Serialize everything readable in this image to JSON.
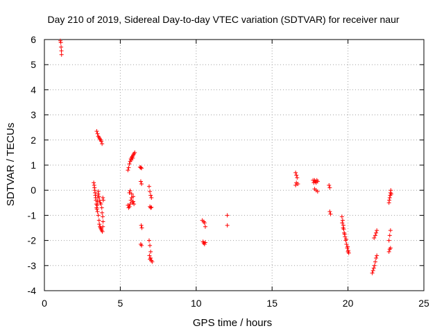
{
  "chart_data": {
    "type": "scatter",
    "title": "Day 210 of 2019, Sidereal Day-to-day VTEC variation (SDTVAR) for receiver naur",
    "xlabel": "GPS time / hours",
    "ylabel": "SDTVAR / TECUs",
    "xlim": [
      0,
      25
    ],
    "ylim": [
      -4,
      6
    ],
    "x_ticks": [
      0,
      5,
      10,
      15,
      20,
      25
    ],
    "y_ticks": [
      -4,
      -3,
      -2,
      -1,
      0,
      1,
      2,
      3,
      4,
      5,
      6
    ],
    "grid": true,
    "marker": "+",
    "colors": {
      "marker": "#ff0000",
      "grid": "#a0a0a0",
      "axes": "#000000"
    },
    "series": [
      {
        "name": "SDTVAR",
        "points": [
          [
            1.05,
            5.95
          ],
          [
            1.08,
            5.88
          ],
          [
            1.1,
            5.7
          ],
          [
            1.12,
            5.55
          ],
          [
            1.13,
            5.4
          ],
          [
            3.25,
            0.3
          ],
          [
            3.28,
            0.2
          ],
          [
            3.3,
            0.1
          ],
          [
            3.32,
            0.0
          ],
          [
            3.34,
            -0.1
          ],
          [
            3.36,
            -0.2
          ],
          [
            3.38,
            -0.3
          ],
          [
            3.4,
            -0.4
          ],
          [
            3.42,
            -0.55
          ],
          [
            3.44,
            -0.7
          ],
          [
            3.46,
            -0.75
          ],
          [
            3.48,
            -0.6
          ],
          [
            3.5,
            -0.45
          ],
          [
            3.52,
            -0.3
          ],
          [
            3.54,
            -0.15
          ],
          [
            3.56,
            -0.05
          ],
          [
            3.5,
            -0.85
          ],
          [
            3.55,
            -1.0
          ],
          [
            3.6,
            -1.2
          ],
          [
            3.62,
            -1.35
          ],
          [
            3.66,
            -1.45
          ],
          [
            3.7,
            -1.5
          ],
          [
            3.74,
            -1.55
          ],
          [
            3.78,
            -1.6
          ],
          [
            3.82,
            -1.65
          ],
          [
            3.85,
            -1.45
          ],
          [
            3.86,
            -1.25
          ],
          [
            3.84,
            -1.05
          ],
          [
            3.8,
            -0.9
          ],
          [
            3.78,
            -0.7
          ],
          [
            3.72,
            -0.55
          ],
          [
            3.68,
            -0.5
          ],
          [
            3.64,
            -0.4
          ],
          [
            3.6,
            -0.25
          ],
          [
            3.85,
            -0.3
          ],
          [
            3.88,
            -0.4
          ],
          [
            3.45,
            2.35
          ],
          [
            3.5,
            2.25
          ],
          [
            3.55,
            2.15
          ],
          [
            3.6,
            2.1
          ],
          [
            3.65,
            2.05
          ],
          [
            3.7,
            2.0
          ],
          [
            3.75,
            1.95
          ],
          [
            3.8,
            1.85
          ],
          [
            5.5,
            0.8
          ],
          [
            5.55,
            0.9
          ],
          [
            5.6,
            1.05
          ],
          [
            5.65,
            1.15
          ],
          [
            5.7,
            1.25
          ],
          [
            5.75,
            1.3
          ],
          [
            5.8,
            1.35
          ],
          [
            5.85,
            1.4
          ],
          [
            5.9,
            1.45
          ],
          [
            5.95,
            1.5
          ],
          [
            5.72,
            1.2
          ],
          [
            5.82,
            1.28
          ],
          [
            5.5,
            -0.6
          ],
          [
            5.55,
            -0.7
          ],
          [
            5.6,
            -0.65
          ],
          [
            5.65,
            -0.55
          ],
          [
            5.7,
            -0.4
          ],
          [
            5.75,
            -0.3
          ],
          [
            5.8,
            -0.5
          ],
          [
            5.85,
            -0.45
          ],
          [
            5.9,
            -0.55
          ],
          [
            5.6,
            -0.1
          ],
          [
            5.65,
            -0.02
          ],
          [
            5.75,
            -0.15
          ],
          [
            5.85,
            -0.25
          ],
          [
            6.3,
            0.92
          ],
          [
            6.35,
            0.9
          ],
          [
            6.4,
            0.88
          ],
          [
            6.35,
            0.35
          ],
          [
            6.4,
            0.25
          ],
          [
            6.38,
            -1.4
          ],
          [
            6.42,
            -1.5
          ],
          [
            6.35,
            -2.15
          ],
          [
            6.4,
            -2.2
          ],
          [
            6.9,
            0.15
          ],
          [
            6.95,
            -0.05
          ],
          [
            7.0,
            -0.2
          ],
          [
            7.05,
            -0.3
          ],
          [
            6.95,
            -0.65
          ],
          [
            7.0,
            -0.7
          ],
          [
            7.05,
            -0.68
          ],
          [
            6.9,
            -2.0
          ],
          [
            6.95,
            -2.2
          ],
          [
            7.0,
            -2.45
          ],
          [
            6.92,
            -2.6
          ],
          [
            7.0,
            -2.7
          ],
          [
            7.05,
            -2.8
          ],
          [
            7.1,
            -2.85
          ],
          [
            6.95,
            -2.75
          ],
          [
            10.4,
            -1.2
          ],
          [
            10.5,
            -1.25
          ],
          [
            10.55,
            -1.3
          ],
          [
            10.6,
            -1.45
          ],
          [
            10.45,
            -2.05
          ],
          [
            10.5,
            -2.1
          ],
          [
            10.55,
            -2.15
          ],
          [
            10.6,
            -2.08
          ],
          [
            12.05,
            -1.0
          ],
          [
            12.05,
            -1.4
          ],
          [
            16.55,
            0.7
          ],
          [
            16.6,
            0.6
          ],
          [
            16.65,
            0.5
          ],
          [
            16.6,
            0.3
          ],
          [
            16.55,
            0.2
          ],
          [
            16.7,
            0.25
          ],
          [
            17.7,
            0.4
          ],
          [
            17.75,
            0.3
          ],
          [
            17.8,
            0.4
          ],
          [
            17.85,
            0.35
          ],
          [
            17.9,
            0.3
          ],
          [
            17.95,
            0.4
          ],
          [
            18.0,
            0.35
          ],
          [
            17.8,
            0.05
          ],
          [
            17.9,
            0.0
          ],
          [
            18.0,
            -0.05
          ],
          [
            18.75,
            0.2
          ],
          [
            18.8,
            0.1
          ],
          [
            18.8,
            -0.85
          ],
          [
            18.85,
            -0.95
          ],
          [
            19.6,
            -1.05
          ],
          [
            19.65,
            -1.2
          ],
          [
            19.7,
            -1.4
          ],
          [
            19.72,
            -1.55
          ],
          [
            19.75,
            -1.7
          ],
          [
            19.8,
            -1.85
          ],
          [
            19.85,
            -2.0
          ],
          [
            19.9,
            -2.15
          ],
          [
            19.95,
            -2.3
          ],
          [
            20.0,
            -2.45
          ],
          [
            20.05,
            -2.5
          ],
          [
            19.62,
            -1.3
          ],
          [
            19.68,
            -1.5
          ],
          [
            19.78,
            -1.75
          ],
          [
            19.88,
            -1.95
          ],
          [
            19.98,
            -2.25
          ],
          [
            20.02,
            -2.4
          ],
          [
            21.6,
            -3.3
          ],
          [
            21.65,
            -3.2
          ],
          [
            21.7,
            -3.1
          ],
          [
            21.75,
            -3.0
          ],
          [
            21.8,
            -2.85
          ],
          [
            21.85,
            -2.7
          ],
          [
            21.9,
            -2.6
          ],
          [
            21.72,
            -1.9
          ],
          [
            21.8,
            -1.8
          ],
          [
            21.85,
            -1.7
          ],
          [
            21.9,
            -1.6
          ],
          [
            22.7,
            -2.45
          ],
          [
            22.75,
            -2.35
          ],
          [
            22.8,
            -2.3
          ],
          [
            22.7,
            -2.0
          ],
          [
            22.75,
            -1.8
          ],
          [
            22.8,
            -1.6
          ],
          [
            22.7,
            -0.5
          ],
          [
            22.72,
            -0.4
          ],
          [
            22.75,
            -0.3
          ],
          [
            22.78,
            -0.2
          ],
          [
            22.8,
            -0.1
          ],
          [
            22.82,
            0.0
          ],
          [
            22.85,
            -0.15
          ]
        ]
      }
    ]
  }
}
